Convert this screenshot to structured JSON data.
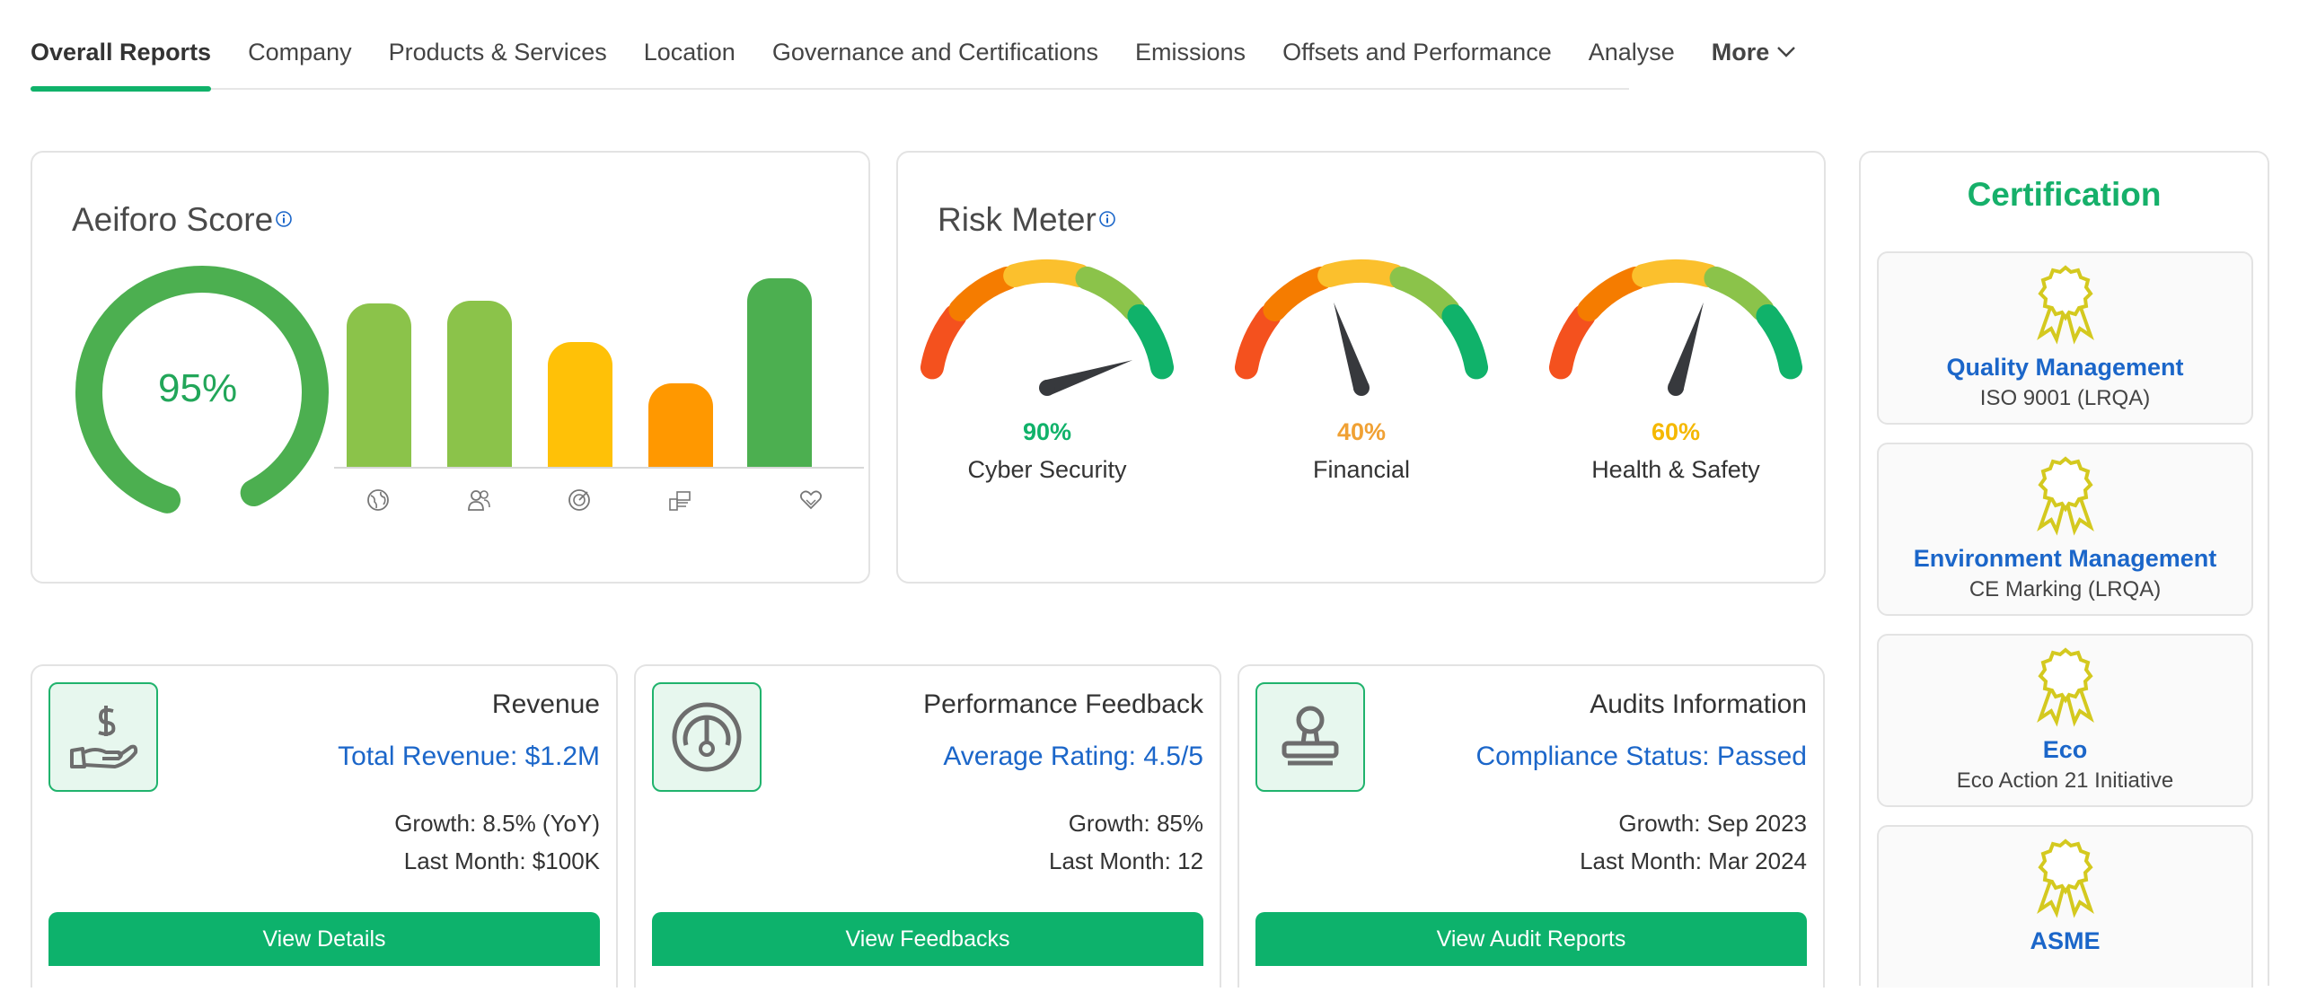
{
  "tabs": [
    {
      "label": "Overall Reports",
      "active": true
    },
    {
      "label": "Company"
    },
    {
      "label": "Products & Services"
    },
    {
      "label": "Location"
    },
    {
      "label": "Governance and Certifications"
    },
    {
      "label": "Emissions"
    },
    {
      "label": "Offsets and Performance"
    },
    {
      "label": "Analyse"
    },
    {
      "label": "More"
    }
  ],
  "score": {
    "title": "Aeiforo Score",
    "value": "95%",
    "value_fraction": 0.95,
    "bars": [
      {
        "icon": "globe-icon",
        "level": 0.8,
        "color": "#8bc34a"
      },
      {
        "icon": "people-icon",
        "level": 0.81,
        "color": "#8bc34a"
      },
      {
        "icon": "target-icon",
        "level": 0.61,
        "color": "#ffc107"
      },
      {
        "icon": "money-icon",
        "level": 0.41,
        "color": "#ff9800"
      },
      {
        "icon": "heart-hand-icon",
        "level": 0.92,
        "color": "#4caf50"
      }
    ]
  },
  "risk": {
    "title": "Risk Meter",
    "gauges": [
      {
        "label": "Cyber Security",
        "value": "90%",
        "fraction": 0.9,
        "color": "#10b26a"
      },
      {
        "label": "Financial",
        "value": "40%",
        "fraction": 0.4,
        "color": "#f0a134"
      },
      {
        "label": "Health & Safety",
        "value": "60%",
        "fraction": 0.6,
        "color": "#f5b800"
      }
    ],
    "segment_colors": [
      "#f4511e",
      "#f57c00",
      "#fbc02d",
      "#8bc34a",
      "#10b26a"
    ]
  },
  "cards": [
    {
      "title": "Revenue",
      "highlight": "Total Revenue: $1.2M",
      "line1": "Growth: 8.5% (YoY)",
      "line2": "Last Month: $100K",
      "button": "View Details",
      "icon": "hand-dollar-icon"
    },
    {
      "title": "Performance Feedback",
      "highlight": "Average Rating: 4.5/5",
      "line1": "Growth: 85%",
      "line2": "Last Month: 12",
      "button": "View Feedbacks",
      "icon": "speedometer-icon"
    },
    {
      "title": "Audits Information",
      "highlight": "Compliance Status: Passed",
      "line1": "Growth: Sep 2023",
      "line2": "Last Month: Mar 2024",
      "button": "View Audit Reports",
      "icon": "stamp-icon"
    }
  ],
  "certification": {
    "title": "Certification",
    "items": [
      {
        "name": "Quality Management",
        "sub": "ISO 9001 (LRQA)"
      },
      {
        "name": "Environment Management",
        "sub": "CE Marking (LRQA)"
      },
      {
        "name": "Eco",
        "sub": "Eco Action 21 Initiative"
      },
      {
        "name": "ASME",
        "sub": ""
      }
    ]
  },
  "colors": {
    "accent": "#10b26a",
    "link": "#1b66c9",
    "medal": "#d4c91f"
  }
}
